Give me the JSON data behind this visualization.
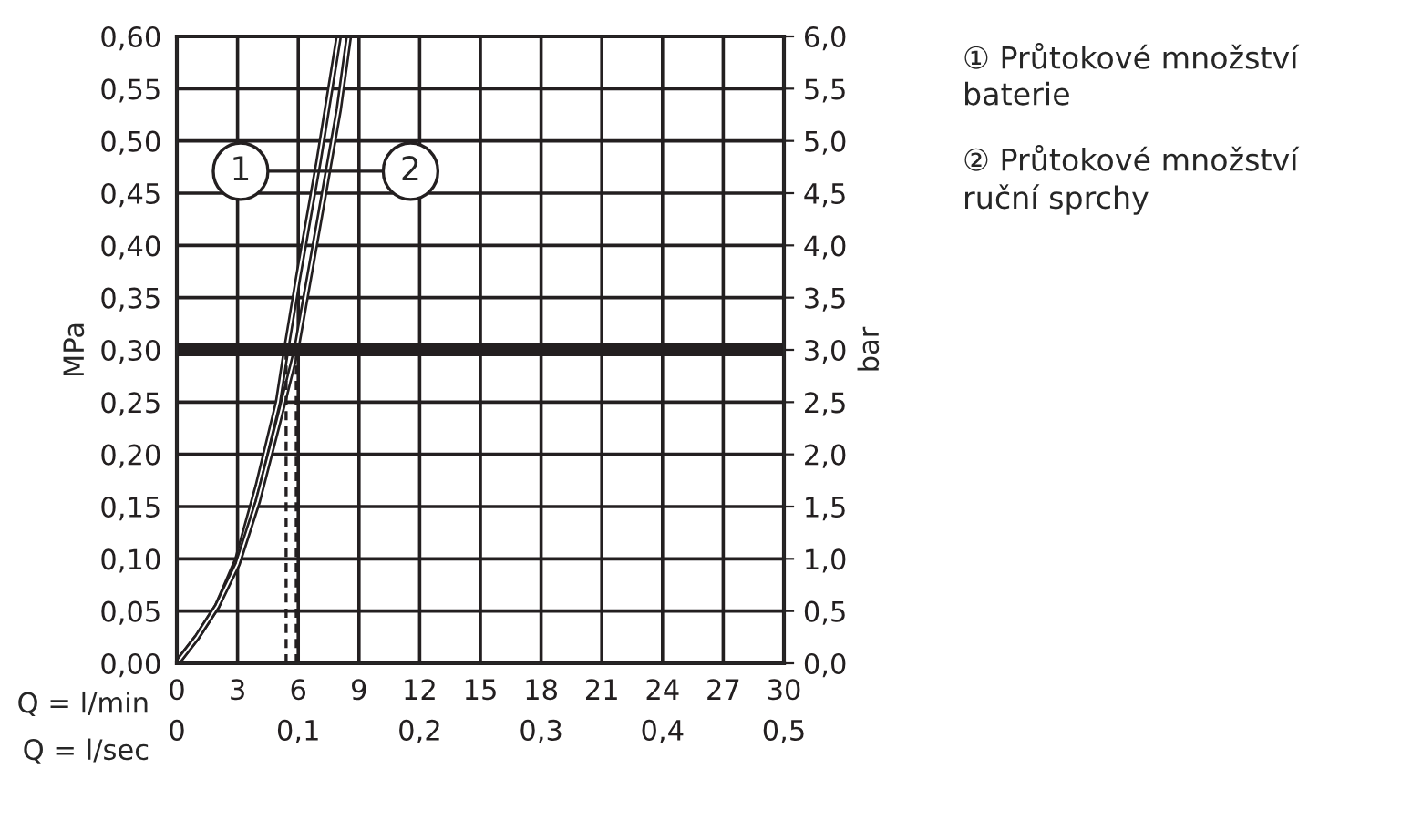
{
  "chart_data": {
    "type": "line",
    "xlabel": "Q = l/min",
    "x2label": "Q = l/sec",
    "ylabel": "MPa",
    "y2label": "bar",
    "xlim": [
      0,
      30
    ],
    "xticks": [
      0,
      3,
      6,
      9,
      12,
      15,
      18,
      21,
      24,
      27,
      30
    ],
    "x2lim": [
      0,
      0.5
    ],
    "x2ticks": [
      0,
      {
        "value": 0.1,
        "label": "0,1"
      },
      {
        "value": 0.2,
        "label": "0,2"
      },
      {
        "value": 0.3,
        "label": "0,3"
      },
      {
        "value": 0.4,
        "label": "0,4"
      },
      {
        "value": 0.5,
        "label": "0,5"
      }
    ],
    "ylim": [
      0,
      0.6
    ],
    "yticks": [
      {
        "value": 0,
        "label": "0,00"
      },
      {
        "value": 0.05,
        "label": "0,05"
      },
      {
        "value": 0.1,
        "label": "0,10"
      },
      {
        "value": 0.15,
        "label": "0,15"
      },
      {
        "value": 0.2,
        "label": "0,20"
      },
      {
        "value": 0.25,
        "label": "0,25"
      },
      {
        "value": 0.3,
        "label": "0,30"
      },
      {
        "value": 0.35,
        "label": "0,35"
      },
      {
        "value": 0.4,
        "label": "0,40"
      },
      {
        "value": 0.45,
        "label": "0,45"
      },
      {
        "value": 0.5,
        "label": "0,50"
      },
      {
        "value": 0.55,
        "label": "0,55"
      },
      {
        "value": 0.6,
        "label": "0,60"
      }
    ],
    "y2lim": [
      0,
      6
    ],
    "y2ticks": [
      {
        "value": 0,
        "label": "0,0"
      },
      {
        "value": 0.5,
        "label": "0,5"
      },
      {
        "value": 1,
        "label": "1,0"
      },
      {
        "value": 1.5,
        "label": "1,5"
      },
      {
        "value": 2,
        "label": "2,0"
      },
      {
        "value": 2.5,
        "label": "2,5"
      },
      {
        "value": 3,
        "label": "3,0"
      },
      {
        "value": 3.5,
        "label": "3,5"
      },
      {
        "value": 4,
        "label": "4,0"
      },
      {
        "value": 4.5,
        "label": "4,5"
      },
      {
        "value": 5,
        "label": "5,0"
      },
      {
        "value": 5.5,
        "label": "5,5"
      },
      {
        "value": 6,
        "label": "6,0"
      }
    ],
    "grid": true,
    "legend": "top left",
    "series": [
      {
        "name": "1",
        "color": "#231f20",
        "x": [
          0,
          1,
          2,
          3,
          4,
          5,
          5.4,
          6,
          7,
          8
        ],
        "values": [
          0,
          0.025,
          0.055,
          0.1,
          0.17,
          0.25,
          0.3,
          0.37,
          0.48,
          0.6
        ]
      },
      {
        "name": "2",
        "color": "#231f20",
        "x": [
          0,
          1,
          2,
          3,
          4,
          5,
          5.9,
          7,
          8,
          8.5
        ],
        "values": [
          0,
          0.025,
          0.055,
          0.095,
          0.155,
          0.23,
          0.3,
          0.42,
          0.53,
          0.6
        ]
      },
      {
        "color": "#231f20",
        "line_style": "dashed",
        "x": [
          5.4,
          5.4
        ],
        "values": [
          0,
          0.3
        ]
      },
      {
        "color": "#231f20",
        "line_style": "dashed",
        "x": [
          5.9,
          5.9
        ],
        "values": [
          0,
          0.3
        ]
      }
    ],
    "ref_lines": [
      {
        "axis": "y",
        "value": 0.3,
        "color": "#231f20"
      }
    ],
    "annotations": [
      "① Průtokové množství\nbaterie",
      "② Průtokové množství\nruční sprchy"
    ]
  }
}
